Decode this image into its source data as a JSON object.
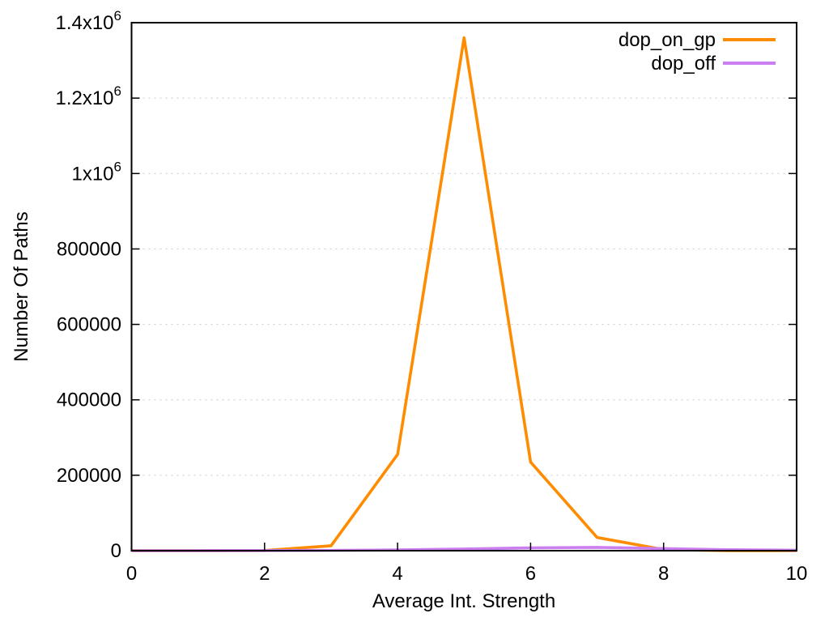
{
  "figure": {
    "background": "#ffffff"
  },
  "chart_data": {
    "type": "line",
    "title": "",
    "xlabel": "Average Int. Strength",
    "ylabel": "Number Of Paths",
    "xlim": [
      0,
      10
    ],
    "ylim": [
      0,
      1400000
    ],
    "grid": {
      "horizontal": true,
      "vertical": false,
      "line_style": "dotted",
      "color": "#c9c9c9"
    },
    "axis_color": "#000000",
    "x": [
      0,
      1,
      2,
      3,
      4,
      5,
      6,
      7,
      8,
      9,
      10
    ],
    "series": [
      {
        "name": "dop_on_gp",
        "color": "#ff8c00",
        "values": [
          0,
          0,
          500,
          13000,
          255000,
          1360000,
          235000,
          35000,
          3000,
          0,
          0
        ]
      },
      {
        "name": "dop_off",
        "color": "#cb7ef0",
        "values": [
          0,
          0,
          300,
          800,
          2000,
          4500,
          7500,
          8800,
          5500,
          2500,
          1200
        ]
      }
    ],
    "x_ticks": [
      {
        "v": 0,
        "label": "0"
      },
      {
        "v": 2,
        "label": "2"
      },
      {
        "v": 4,
        "label": "4"
      },
      {
        "v": 6,
        "label": "6"
      },
      {
        "v": 8,
        "label": "8"
      },
      {
        "v": 10,
        "label": "10"
      }
    ],
    "y_ticks": [
      {
        "v": 0,
        "label": "0"
      },
      {
        "v": 200000,
        "label": "200000"
      },
      {
        "v": 400000,
        "label": "400000"
      },
      {
        "v": 600000,
        "label": "600000"
      },
      {
        "v": 800000,
        "label": "800000"
      },
      {
        "v": 1000000,
        "label": "1x10^6"
      },
      {
        "v": 1200000,
        "label": "1.2x10^6"
      },
      {
        "v": 1400000,
        "label": "1.4x10^6"
      }
    ],
    "legend": {
      "position": "top-right",
      "entries": [
        "dop_on_gp",
        "dop_off"
      ]
    }
  }
}
